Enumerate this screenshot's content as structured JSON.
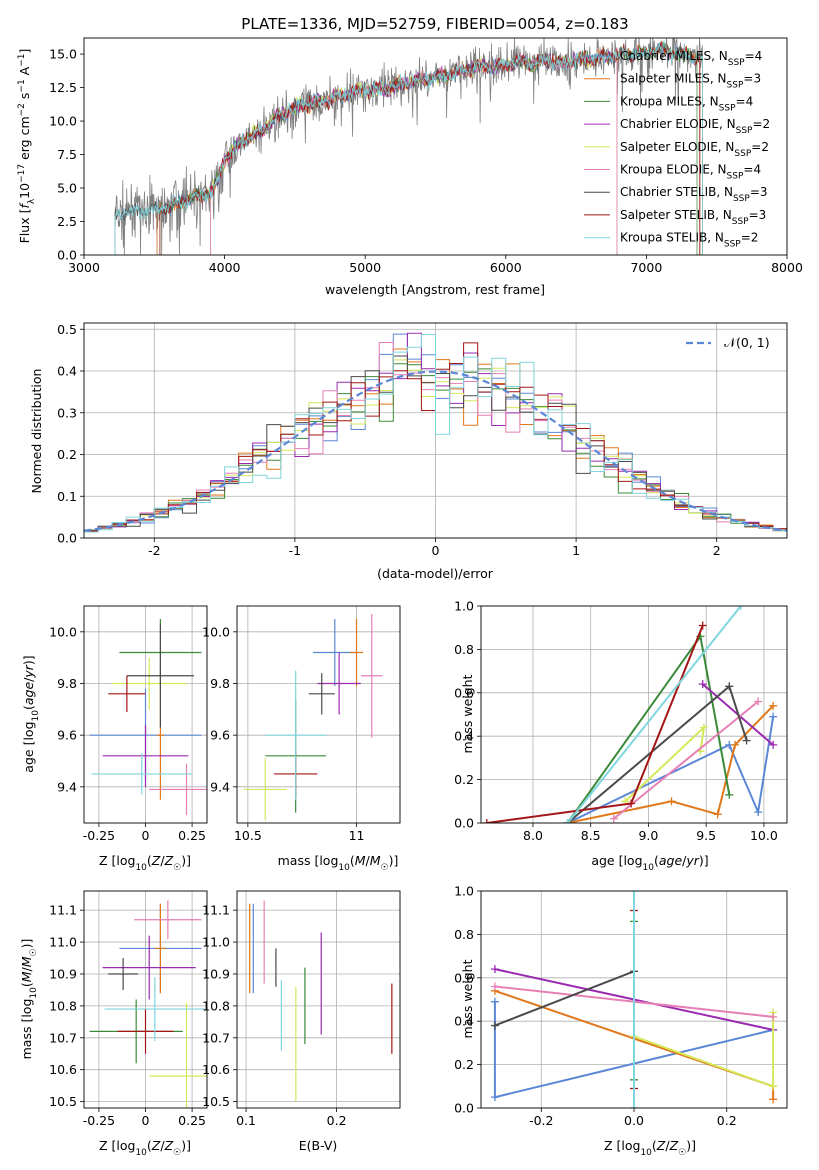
{
  "colors": {
    "series": [
      "#5b87d6",
      "#e0781a",
      "#3a8a3a",
      "#9a2ab0",
      "#d4e85a",
      "#e67fb4",
      "#4a4a4a",
      "#a31616",
      "#7ed6de"
    ],
    "data_line": "#808080",
    "grid": "#b0b0b0",
    "normal": "#5b87d6"
  },
  "chart_data": [
    {
      "id": "spectrum",
      "type": "line",
      "title": "PLATE=1336, MJD=52759, FIBERID=0054, z=0.183",
      "xlabel": "wavelength [Angstrom, rest frame]",
      "ylabel": "Flux [f_λ 10^-17 erg cm^-2 s^-1 A^-1]",
      "xlim": [
        3000,
        8000
      ],
      "ylim": [
        0,
        16.2
      ],
      "xticks": [
        3000,
        4000,
        5000,
        6000,
        7000,
        8000
      ],
      "yticks": [
        0.0,
        2.5,
        5.0,
        7.5,
        10.0,
        12.5,
        15.0
      ],
      "grid": false,
      "legend_position": "top-right",
      "legend": [
        "Chabrier MILES, N_SSP=4",
        "Salpeter MILES, N_SSP=3",
        "Kroupa MILES, N_SSP=4",
        "Chabrier ELODIE, N_SSP=2",
        "Salpeter ELODIE, N_SSP=2",
        "Kroupa ELODIE, N_SSP=4",
        "Chabrier STELIB, N_SSP=3",
        "Salpeter STELIB, N_SSP=3",
        "Kroupa STELIB, N_SSP=2"
      ],
      "continuum": {
        "x": [
          3220,
          3300,
          3400,
          3500,
          3600,
          3700,
          3800,
          3900,
          3950,
          4000,
          4100,
          4200,
          4300,
          4400,
          4500,
          4600,
          4700,
          4800,
          4900,
          5000,
          5100,
          5200,
          5300,
          5400,
          5500,
          5600,
          5700,
          5800,
          5900,
          6000,
          6100,
          6200,
          6300,
          6400,
          6500,
          6600,
          6700,
          6800,
          6900,
          7000,
          7100,
          7200,
          7300,
          7400
        ],
        "y": [
          3.0,
          3.2,
          3.3,
          3.4,
          3.6,
          4.0,
          4.4,
          4.6,
          5.5,
          7.2,
          8.2,
          8.9,
          9.6,
          10.5,
          11.0,
          11.3,
          11.5,
          11.8,
          12.1,
          12.4,
          12.3,
          12.6,
          12.9,
          13.1,
          13.3,
          13.5,
          13.8,
          14.1,
          14.0,
          14.2,
          14.5,
          14.3,
          14.5,
          14.3,
          14.6,
          14.6,
          14.8,
          14.9,
          15.0,
          15.1,
          15.4,
          15.1,
          14.9,
          14.7
        ]
      },
      "model_ranges": [
        [
          3520,
          7380
        ],
        [
          3520,
          7380
        ],
        [
          3540,
          7360
        ],
        [
          3900,
          6790
        ],
        [
          3900,
          6790
        ],
        [
          3900,
          6790
        ],
        [
          3220,
          7400
        ],
        [
          3540,
          7380
        ],
        [
          3220,
          7400
        ]
      ]
    },
    {
      "id": "residuals",
      "type": "step",
      "xlabel": "(data-model)/error",
      "ylabel": "Normed distribution",
      "xlim": [
        -2.5,
        2.5
      ],
      "ylim": [
        0,
        0.515
      ],
      "xticks": [
        -2,
        -1,
        0,
        1,
        2
      ],
      "yticks": [
        0.0,
        0.1,
        0.2,
        0.3,
        0.4,
        0.5
      ],
      "grid": true,
      "legend_position": "top-right",
      "normal_label": "N(0,1)",
      "bin_edges_start": -2.5,
      "bin_width": 0.1
    },
    {
      "id": "age_vs_Z",
      "type": "errorbar",
      "xlabel": "Z [log10(Z/Z☉)]",
      "ylabel": "age [log10(age/yr)]",
      "xlim": [
        -0.33,
        0.33
      ],
      "ylim": [
        9.26,
        10.1
      ],
      "xticks": [
        -0.25,
        0.0,
        0.25
      ],
      "yticks": [
        9.4,
        9.6,
        9.8,
        10.0
      ],
      "points": [
        {
          "x": 0.0,
          "y": 9.6,
          "xerr": 0.3,
          "yerr": 0.18
        },
        {
          "x": 0.08,
          "y": 9.6,
          "xerr": 0.02,
          "yerr": 0.25
        },
        {
          "x": 0.08,
          "y": 9.92,
          "xerr": 0.22,
          "yerr": 0.13
        },
        {
          "x": 0.0,
          "y": 9.52,
          "xerr": 0.23,
          "yerr": 0.12
        },
        {
          "x": 0.02,
          "y": 9.8,
          "xerr": 0.2,
          "yerr": 0.1
        },
        {
          "x": 0.22,
          "y": 9.39,
          "xerr": 0.2,
          "yerr": 0.1
        },
        {
          "x": 0.08,
          "y": 9.83,
          "xerr": 0.18,
          "yerr": 0.2
        },
        {
          "x": -0.1,
          "y": 9.76,
          "xerr": 0.1,
          "yerr": 0.07
        },
        {
          "x": -0.02,
          "y": 9.45,
          "xerr": 0.27,
          "yerr": 0.08
        }
      ]
    },
    {
      "id": "age_vs_mass",
      "type": "errorbar",
      "xlabel": "mass [log10(M/M☉)]",
      "ylabel": "",
      "xlim": [
        10.45,
        11.2
      ],
      "ylim": [
        9.26,
        10.1
      ],
      "xticks": [
        10.5,
        11.0
      ],
      "yticks": [
        9.4,
        9.6,
        9.8,
        10.0
      ],
      "points": [
        {
          "x": 10.9,
          "y": 9.92,
          "xerr": 0.1,
          "yerr": 0.13
        },
        {
          "x": 11.0,
          "y": 9.92,
          "xerr": 0.03,
          "yerr": 0.13
        },
        {
          "x": 10.72,
          "y": 9.52,
          "xerr": 0.14,
          "yerr": 0.22
        },
        {
          "x": 10.92,
          "y": 9.8,
          "xerr": 0.1,
          "yerr": 0.12
        },
        {
          "x": 10.58,
          "y": 9.39,
          "xerr": 0.1,
          "yerr": 0.12
        },
        {
          "x": 11.07,
          "y": 9.83,
          "xerr": 0.05,
          "yerr": 0.24
        },
        {
          "x": 10.84,
          "y": 9.76,
          "xerr": 0.06,
          "yerr": 0.08
        },
        {
          "x": 10.72,
          "y": 9.45,
          "xerr": 0.1,
          "yerr": 0.09
        },
        {
          "x": 10.72,
          "y": 9.6,
          "xerr": 0.14,
          "yerr": 0.25
        }
      ]
    },
    {
      "id": "weight_vs_age",
      "type": "line",
      "xlabel": "age [log10(age/yr)]",
      "ylabel": "mass weight",
      "xlim": [
        7.55,
        10.2
      ],
      "ylim": [
        0,
        1.0
      ],
      "xticks": [
        8.0,
        8.5,
        9.0,
        9.5,
        10.0
      ],
      "yticks": [
        0.0,
        0.2,
        0.4,
        0.6,
        0.8,
        1.0
      ],
      "series": [
        {
          "x": [
            8.3,
            9.7,
            9.95,
            10.08
          ],
          "y": [
            0.0,
            0.36,
            0.05,
            0.49
          ]
        },
        {
          "x": [
            8.3,
            9.2,
            9.6,
            9.75,
            10.08
          ],
          "y": [
            0.0,
            0.1,
            0.04,
            0.36,
            0.54
          ]
        },
        {
          "x": [
            8.3,
            9.45,
            9.7
          ],
          "y": [
            0.0,
            0.86,
            0.13
          ]
        },
        {
          "x": [
            9.47,
            10.08
          ],
          "y": [
            0.64,
            0.36
          ]
        },
        {
          "x": [
            8.8,
            9.48,
            9.45
          ],
          "y": [
            0.1,
            0.44,
            0.33
          ]
        },
        {
          "x": [
            8.7,
            9.95
          ],
          "y": [
            0.02,
            0.56
          ]
        },
        {
          "x": [
            8.3,
            9.7,
            9.85
          ],
          "y": [
            0.0,
            0.63,
            0.38
          ]
        },
        {
          "x": [
            7.6,
            8.85,
            9.47
          ],
          "y": [
            0.0,
            0.09,
            0.91
          ]
        },
        {
          "x": [
            8.3,
            9.8
          ],
          "y": [
            0.0,
            1.0
          ]
        }
      ]
    },
    {
      "id": "mass_vs_Z",
      "type": "errorbar",
      "xlabel": "Z [log10(Z/Z☉)]",
      "ylabel": "mass [log10(M/M☉)]",
      "xlim": [
        -0.33,
        0.33
      ],
      "ylim": [
        10.48,
        11.16
      ],
      "xticks": [
        -0.25,
        0.0,
        0.25
      ],
      "yticks": [
        10.5,
        10.6,
        10.7,
        10.8,
        10.9,
        11.0,
        11.1
      ],
      "points": [
        {
          "x": 0.08,
          "y": 10.98,
          "xerr": 0.22,
          "yerr": 0.14
        },
        {
          "x": 0.08,
          "y": 10.98,
          "xerr": 0.03,
          "yerr": 0.14
        },
        {
          "x": -0.05,
          "y": 10.72,
          "xerr": 0.25,
          "yerr": 0.1
        },
        {
          "x": 0.02,
          "y": 10.92,
          "xerr": 0.25,
          "yerr": 0.1
        },
        {
          "x": 0.22,
          "y": 10.58,
          "xerr": 0.2,
          "yerr": 0.23
        },
        {
          "x": 0.12,
          "y": 11.07,
          "xerr": 0.18,
          "yerr": 0.06
        },
        {
          "x": -0.12,
          "y": 10.9,
          "xerr": 0.08,
          "yerr": 0.05
        },
        {
          "x": 0.0,
          "y": 10.72,
          "xerr": 0.15,
          "yerr": 0.07
        },
        {
          "x": 0.05,
          "y": 10.79,
          "xerr": 0.27,
          "yerr": 0.1
        }
      ]
    },
    {
      "id": "mass_vs_EBV",
      "type": "errorbar",
      "xlabel": "E(B-V)",
      "ylabel": "",
      "xlim": [
        0.09,
        0.27
      ],
      "ylim": [
        10.48,
        11.16
      ],
      "xticks": [
        0.1,
        0.2
      ],
      "yticks": [
        10.5,
        10.6,
        10.7,
        10.8,
        10.9,
        11.0,
        11.1
      ],
      "points": [
        {
          "x": 0.108,
          "y": 10.98,
          "xerr": 0,
          "yerr": 0.14
        },
        {
          "x": 0.104,
          "y": 10.98,
          "xerr": 0,
          "yerr": 0.14
        },
        {
          "x": 0.165,
          "y": 10.8,
          "xerr": 0,
          "yerr": 0.12
        },
        {
          "x": 0.183,
          "y": 10.87,
          "xerr": 0,
          "yerr": 0.16
        },
        {
          "x": 0.155,
          "y": 10.68,
          "xerr": 0,
          "yerr": 0.18
        },
        {
          "x": 0.12,
          "y": 11.0,
          "xerr": 0,
          "yerr": 0.13
        },
        {
          "x": 0.133,
          "y": 10.92,
          "xerr": 0,
          "yerr": 0.06
        },
        {
          "x": 0.261,
          "y": 10.76,
          "xerr": 0,
          "yerr": 0.11
        },
        {
          "x": 0.139,
          "y": 10.77,
          "xerr": 0,
          "yerr": 0.11
        }
      ]
    },
    {
      "id": "weight_vs_Z",
      "type": "line",
      "xlabel": "Z [log10(Z/Z☉)]",
      "ylabel": "mass weight",
      "xlim": [
        -0.33,
        0.33
      ],
      "ylim": [
        0,
        1.0
      ],
      "xticks": [
        -0.2,
        0.0,
        0.2
      ],
      "yticks": [
        0.0,
        0.2,
        0.4,
        0.6,
        0.8,
        1.0
      ],
      "series": [
        {
          "x": [
            -0.3,
            -0.3,
            0.3
          ],
          "y": [
            0.49,
            0.05,
            0.36
          ]
        },
        {
          "x": [
            -0.3,
            0.3,
            0.3
          ],
          "y": [
            0.54,
            0.1,
            0.04
          ]
        },
        {
          "x": [
            0.0,
            0.0
          ],
          "y": [
            0.86,
            0.13
          ]
        },
        {
          "x": [
            -0.3,
            0.3
          ],
          "y": [
            0.64,
            0.36
          ]
        },
        {
          "x": [
            0.0,
            0.3,
            0.3
          ],
          "y": [
            0.33,
            0.1,
            0.44
          ]
        },
        {
          "x": [
            -0.3,
            0.3
          ],
          "y": [
            0.56,
            0.42
          ]
        },
        {
          "x": [
            -0.3,
            0.0,
            0.0
          ],
          "y": [
            0.38,
            0.63,
            0.0
          ]
        },
        {
          "x": [
            0.0,
            0.0
          ],
          "y": [
            0.91,
            0.09
          ]
        },
        {
          "x": [
            0.0,
            0.0
          ],
          "y": [
            1.0,
            0.0
          ]
        }
      ]
    }
  ]
}
